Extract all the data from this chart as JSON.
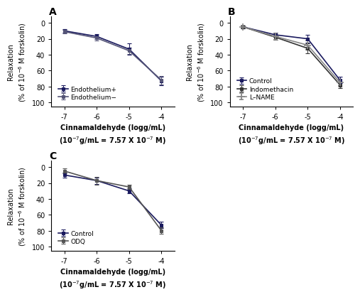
{
  "x": [
    -7,
    -6,
    -5,
    -4
  ],
  "xticks": [
    -7,
    -6,
    -5,
    -4
  ],
  "xlim": [
    -7.4,
    -3.6
  ],
  "ylim": [
    105,
    -8
  ],
  "yticks": [
    0,
    20,
    40,
    60,
    80,
    100
  ],
  "panel_A": {
    "title": "A",
    "series": [
      {
        "label": "Endothelium+",
        "y": [
          10,
          17,
          33,
          73
        ],
        "yerr": [
          2,
          3,
          7,
          5
        ],
        "color": "#1a1a5e",
        "marker": "s",
        "linestyle": "-",
        "lw": 1.2
      },
      {
        "label": "Endothelium−",
        "y": [
          11,
          19,
          35,
          72
        ],
        "yerr": [
          2,
          3,
          4,
          5
        ],
        "color": "#555577",
        "marker": "s",
        "linestyle": "-",
        "lw": 1.2
      }
    ],
    "legend_loc": "upper left",
    "ylabel": "Relaxation\n(% of 10$^{-6}$ M forskolin)",
    "xlabel": "Cinnamaldehyde (logg/mL)\n(10$^{-7}$g/mL = 7.57 X 10$^{-7}$ M)"
  },
  "panel_B": {
    "title": "B",
    "series": [
      {
        "label": "Control",
        "y": [
          5,
          15,
          20,
          72
        ],
        "yerr": [
          2,
          3,
          5,
          4
        ],
        "color": "#1a1a5e",
        "marker": "s",
        "linestyle": "-",
        "lw": 1.2
      },
      {
        "label": "Indomethacin",
        "y": [
          5,
          18,
          32,
          78
        ],
        "yerr": [
          2,
          3,
          6,
          4
        ],
        "color": "#333333",
        "marker": "s",
        "linestyle": "-",
        "lw": 1.2
      },
      {
        "label": "L–NAME",
        "y": [
          5,
          17,
          28,
          75
        ],
        "yerr": [
          2,
          4,
          6,
          4
        ],
        "color": "#888888",
        "marker": "+",
        "linestyle": "-",
        "lw": 1.2
      }
    ],
    "legend_loc": "upper left",
    "ylabel": "Relaxation\n(% of 10$^{-6}$ M forskolin)",
    "xlabel": "Cinnamaldehyde (logg/mL)\n(10$^{-7}$g/mL = 7.57 X 10$^{-7}$ M)"
  },
  "panel_C": {
    "title": "C",
    "series": [
      {
        "label": "Control",
        "y": [
          10,
          17,
          30,
          73
        ],
        "yerr": [
          3,
          4,
          3,
          4
        ],
        "color": "#1a1a5e",
        "marker": "s",
        "linestyle": "-",
        "lw": 1.2
      },
      {
        "label": "ODQ",
        "y": [
          5,
          17,
          25,
          80
        ],
        "yerr": [
          3,
          5,
          3,
          4
        ],
        "color": "#555555",
        "marker": "s",
        "linestyle": "-",
        "lw": 1.2
      }
    ],
    "legend_loc": "upper left",
    "ylabel": "Relaxation\n(% of 10$^{-6}$ M forskolin)",
    "xlabel": "Cinnamaldehyde (logg/mL)\n(10$^{-7}$g/mL = 7.57 X 10$^{-7}$ M)"
  },
  "background": "#ffffff",
  "tick_fontsize": 7,
  "label_fontsize": 7,
  "legend_fontsize": 6.5,
  "title_fontsize": 10
}
